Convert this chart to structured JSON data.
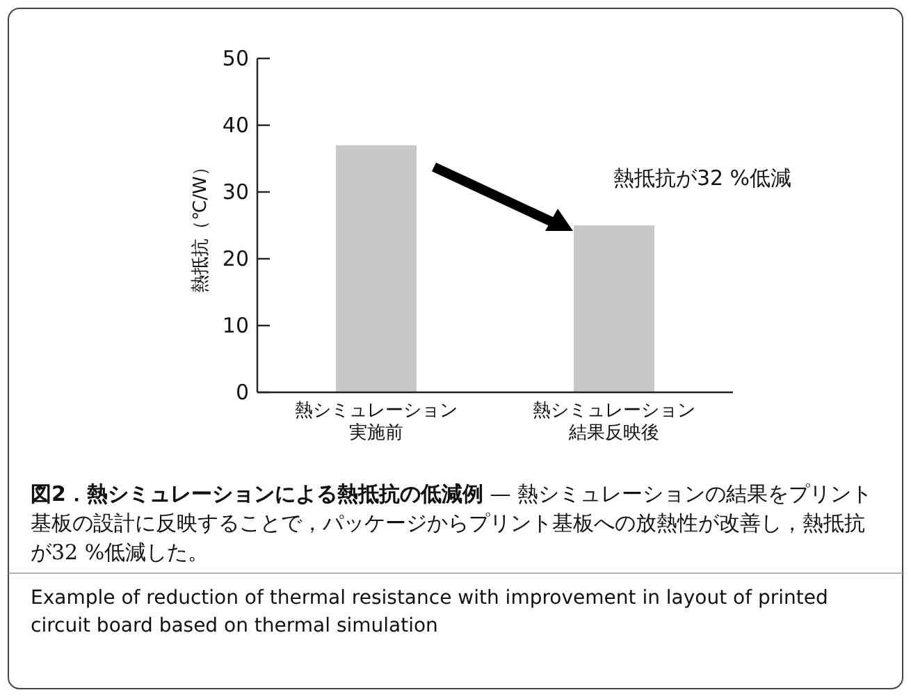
{
  "chart_data": {
    "type": "bar",
    "title": "図2．熱シミュレーションによる熱抵抗の低減例",
    "subtitle": "— 熱シミュレーションの結果をプリント基板の設計に反映することで，パッケージからプリント基板への放熱性が改善し，熱抵抗が32 %低減した。",
    "ylabel": "熱抵抗（℃/W）",
    "categories": [
      "熱シミュレーション実施前",
      "熱シミュレーション結果反映後"
    ],
    "values": [
      37,
      25
    ],
    "color": "#c8c8c8",
    "ylim": [
      0,
      50
    ],
    "yticks": [
      0,
      10,
      20,
      30,
      40,
      50
    ],
    "grid": false,
    "annotations": [
      "熱抵抗が32 %低減",
      "Example of reduction of thermal resistance with improvement in layout of printed circuit board based on thermal simulation"
    ]
  }
}
